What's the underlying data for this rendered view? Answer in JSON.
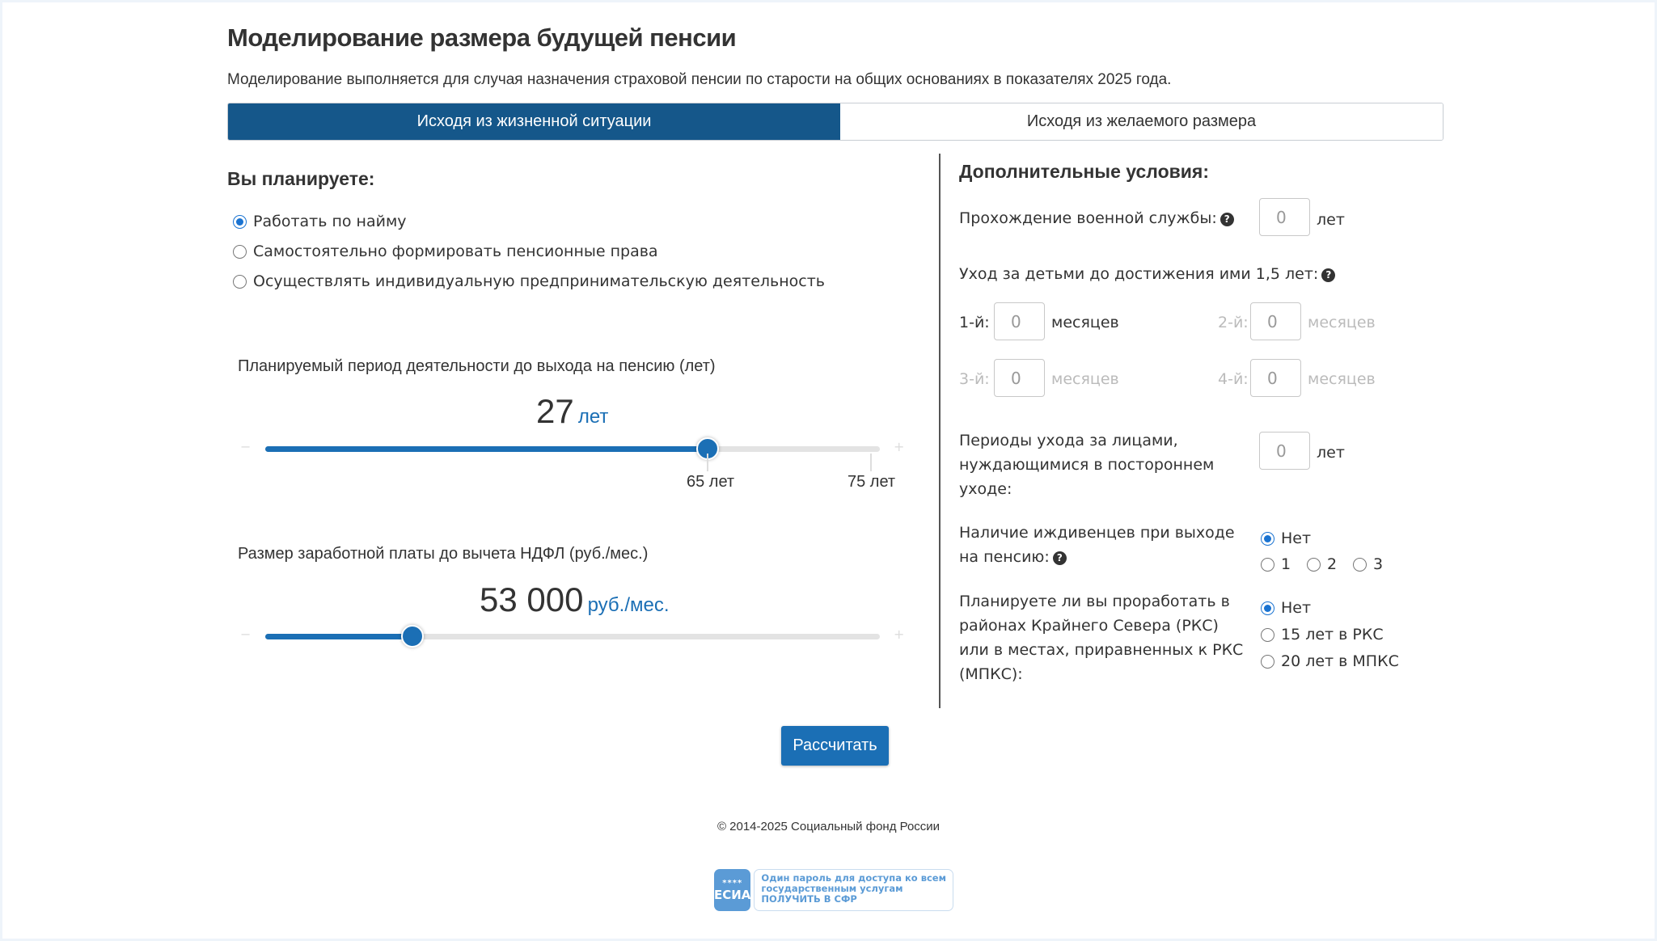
{
  "header": {
    "title": "Моделирование размера будущей пенсии",
    "subtitle": "Моделирование выполняется для случая назначения страховой пенсии по старости на общих основаниях в показателях 2025 года."
  },
  "tabs": [
    {
      "label": "Исходя из жизненной ситуации",
      "active": true
    },
    {
      "label": "Исходя из желаемого размера",
      "active": false
    }
  ],
  "left": {
    "heading": "Вы планируете:",
    "options": [
      {
        "label": "Работать по найму",
        "checked": true
      },
      {
        "label": "Самостоятельно формировать пенсионные права",
        "checked": false
      },
      {
        "label": "Осуществлять индивидуальную предпринимательскую деятельность",
        "checked": false
      }
    ],
    "period": {
      "label": "Планируемый период деятельности до выхода на пенсию (лет)",
      "value": "27",
      "unit": "лет",
      "fill_fraction": 0.72,
      "minus": "−",
      "plus": "+",
      "ticks": [
        "65 лет",
        "75 лет"
      ]
    },
    "salary": {
      "label": "Размер заработной платы до вычета НДФЛ (руб./мес.)",
      "value": "53 000",
      "unit": "руб./мес.",
      "fill_fraction": 0.24,
      "minus": "−",
      "plus": "+"
    }
  },
  "right": {
    "heading": "Дополнительные условия:",
    "military": {
      "label": "Прохождение военной службы:",
      "value": "0",
      "unit": "лет"
    },
    "childcare": {
      "label": "Уход за детьми до достижения ими 1,5 лет:",
      "children": [
        {
          "label": "1-й:",
          "value": "0",
          "unit": "месяцев",
          "enabled": true
        },
        {
          "label": "2-й:",
          "value": "0",
          "unit": "месяцев",
          "enabled": false
        },
        {
          "label": "3-й:",
          "value": "0",
          "unit": "месяцев",
          "enabled": false
        },
        {
          "label": "4-й:",
          "value": "0",
          "unit": "месяцев",
          "enabled": false
        }
      ]
    },
    "care": {
      "lines": [
        "Периоды ухода за лицами,",
        "нуждающимися в постороннем",
        "уходе:"
      ],
      "value": "0",
      "unit": "лет"
    },
    "dependents": {
      "lines": [
        "Наличие иждивенцев при выходе",
        "на пенсию:"
      ],
      "options": [
        {
          "label": "Нет",
          "checked": true
        },
        {
          "label": "1",
          "checked": false
        },
        {
          "label": "2",
          "checked": false
        },
        {
          "label": "3",
          "checked": false
        }
      ]
    },
    "north": {
      "lines": [
        "Планируете ли вы проработать в",
        "районах Крайнего Севера (РКС)",
        "или в местах, приравненных к РКС",
        "(МПКС):"
      ],
      "options": [
        {
          "label": "Нет",
          "checked": true
        },
        {
          "label": "15 лет в РКС",
          "checked": false
        },
        {
          "label": "20 лет в МПКС",
          "checked": false
        }
      ]
    },
    "help_glyph": "?"
  },
  "calculate_label": "Рассчитать",
  "footer": {
    "copyright": "© 2014-2025 Социальный фонд России",
    "esia": {
      "logo_stars": "****",
      "logo_text": "ЕСИА",
      "line1": "Один пароль для доступа ко всем",
      "line2": "государственным услугам",
      "line3": "ПОЛУЧИТЬ В СФР"
    }
  },
  "colors": {
    "primary": "#15578a",
    "accent": "#1b6fb5",
    "radio": "#1a73d1"
  }
}
